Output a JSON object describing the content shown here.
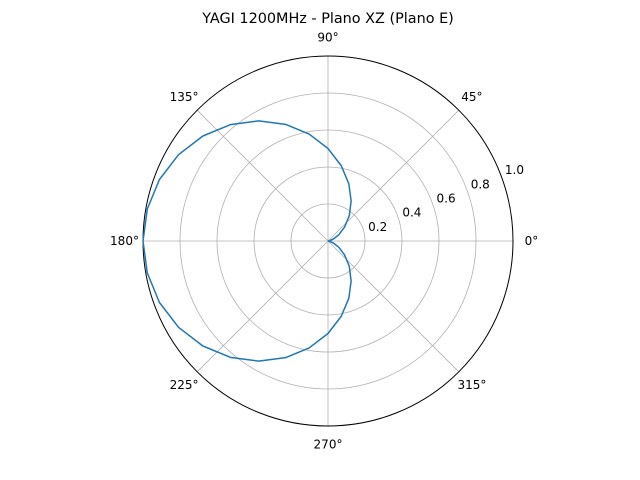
{
  "chart_data": {
    "type": "line",
    "projection": "polar",
    "title": "YAGI 1200MHz - Plano XZ (Plano E)",
    "angle_ticks": [
      "0°",
      "45°",
      "90°",
      "135°",
      "180°",
      "225°",
      "270°",
      "315°"
    ],
    "radial_ticks": [
      "0.2",
      "0.4",
      "0.6",
      "0.8",
      "1.0"
    ],
    "rlim": [
      0,
      1.0
    ],
    "grid": true,
    "legend": false,
    "series": [
      {
        "color": "#1f77b4",
        "theta_deg": [
          0,
          10,
          20,
          30,
          40,
          50,
          60,
          70,
          80,
          90,
          100,
          110,
          120,
          130,
          140,
          150,
          160,
          170,
          180,
          190,
          200,
          210,
          220,
          230,
          240,
          250,
          260,
          270,
          280,
          290,
          300,
          310,
          320,
          330,
          340,
          350,
          360
        ],
        "r": [
          0.0,
          0.008,
          0.03,
          0.067,
          0.117,
          0.179,
          0.25,
          0.329,
          0.413,
          0.5,
          0.587,
          0.671,
          0.75,
          0.821,
          0.883,
          0.933,
          0.97,
          0.992,
          1.0,
          0.992,
          0.97,
          0.933,
          0.883,
          0.821,
          0.75,
          0.671,
          0.587,
          0.5,
          0.413,
          0.329,
          0.25,
          0.179,
          0.117,
          0.067,
          0.03,
          0.008,
          0.0
        ]
      }
    ]
  }
}
